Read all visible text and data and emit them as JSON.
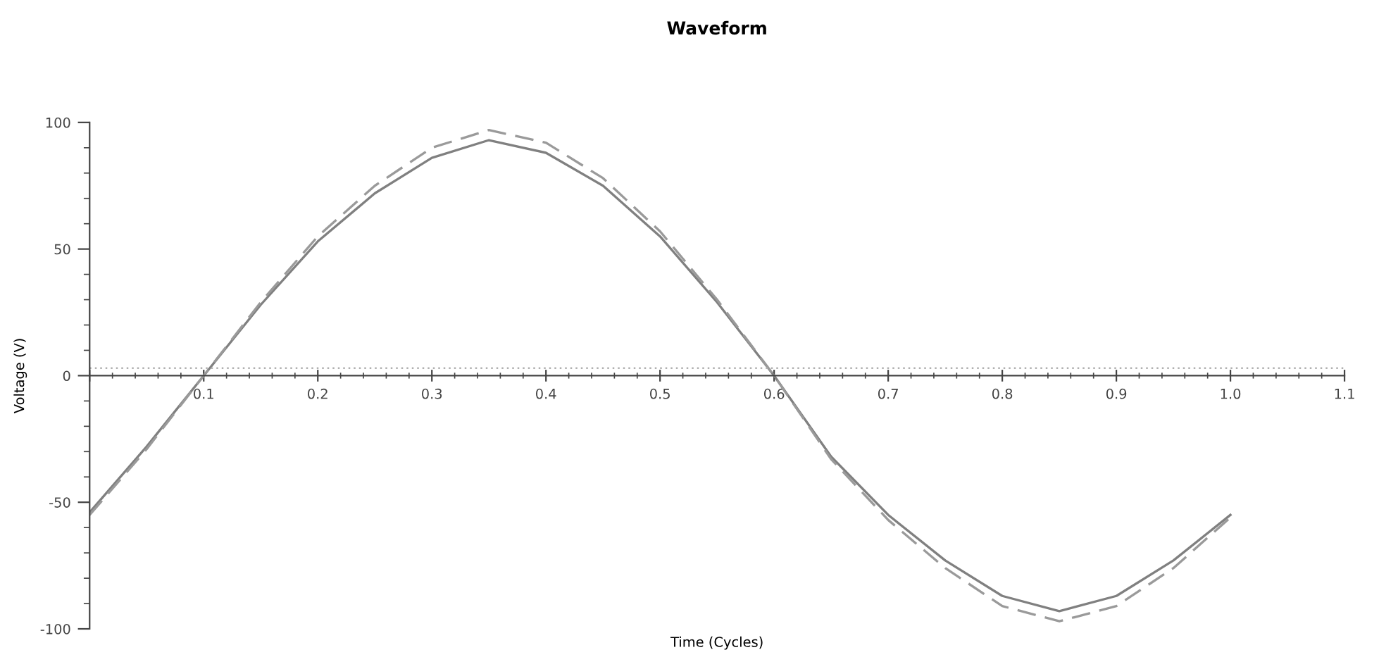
{
  "chart_data": {
    "type": "line",
    "title": "Waveform",
    "xlabel": "Time (Cycles)",
    "ylabel": "Voltage (V)",
    "x": [
      0,
      0.05,
      0.1,
      0.15,
      0.2,
      0.25,
      0.3,
      0.35,
      0.4,
      0.45,
      0.5,
      0.55,
      0.6,
      0.65,
      0.7,
      0.75,
      0.8,
      0.85,
      0.9,
      0.95,
      1.0
    ],
    "series": [
      {
        "color": "#808080",
        "line_style": "solid",
        "values": [
          -54,
          -28,
          0,
          28,
          53,
          72,
          86,
          93,
          88,
          75,
          55,
          29,
          0,
          -32,
          -55,
          -73,
          -87,
          -93,
          -87,
          -73,
          -55
        ]
      },
      {
        "color": "#9a9a9a",
        "line_style": "dashed",
        "values": [
          -55,
          -29,
          0,
          29,
          55,
          75,
          90,
          97,
          92,
          78,
          57,
          30,
          0,
          -33,
          -57,
          -76,
          -91,
          -97,
          -91,
          -76,
          -56
        ]
      }
    ],
    "ref_lines": [
      {
        "axis": "y",
        "value": 3,
        "label": null,
        "color": "#b0b0b0",
        "line_style": "dotted"
      }
    ],
    "xlim": [
      0,
      1.1
    ],
    "xticks": [
      {
        "value": 0,
        "label": null
      },
      0.1,
      0.2,
      0.3,
      0.4,
      0.5,
      0.6,
      0.7,
      0.8,
      0.9,
      {
        "value": 1.0,
        "label": "1.0"
      },
      1.1
    ],
    "ylim": [
      -100,
      100
    ],
    "yticks": [
      -100,
      -50,
      0,
      50,
      100
    ],
    "grid": false,
    "legend": false,
    "marker": "none"
  }
}
